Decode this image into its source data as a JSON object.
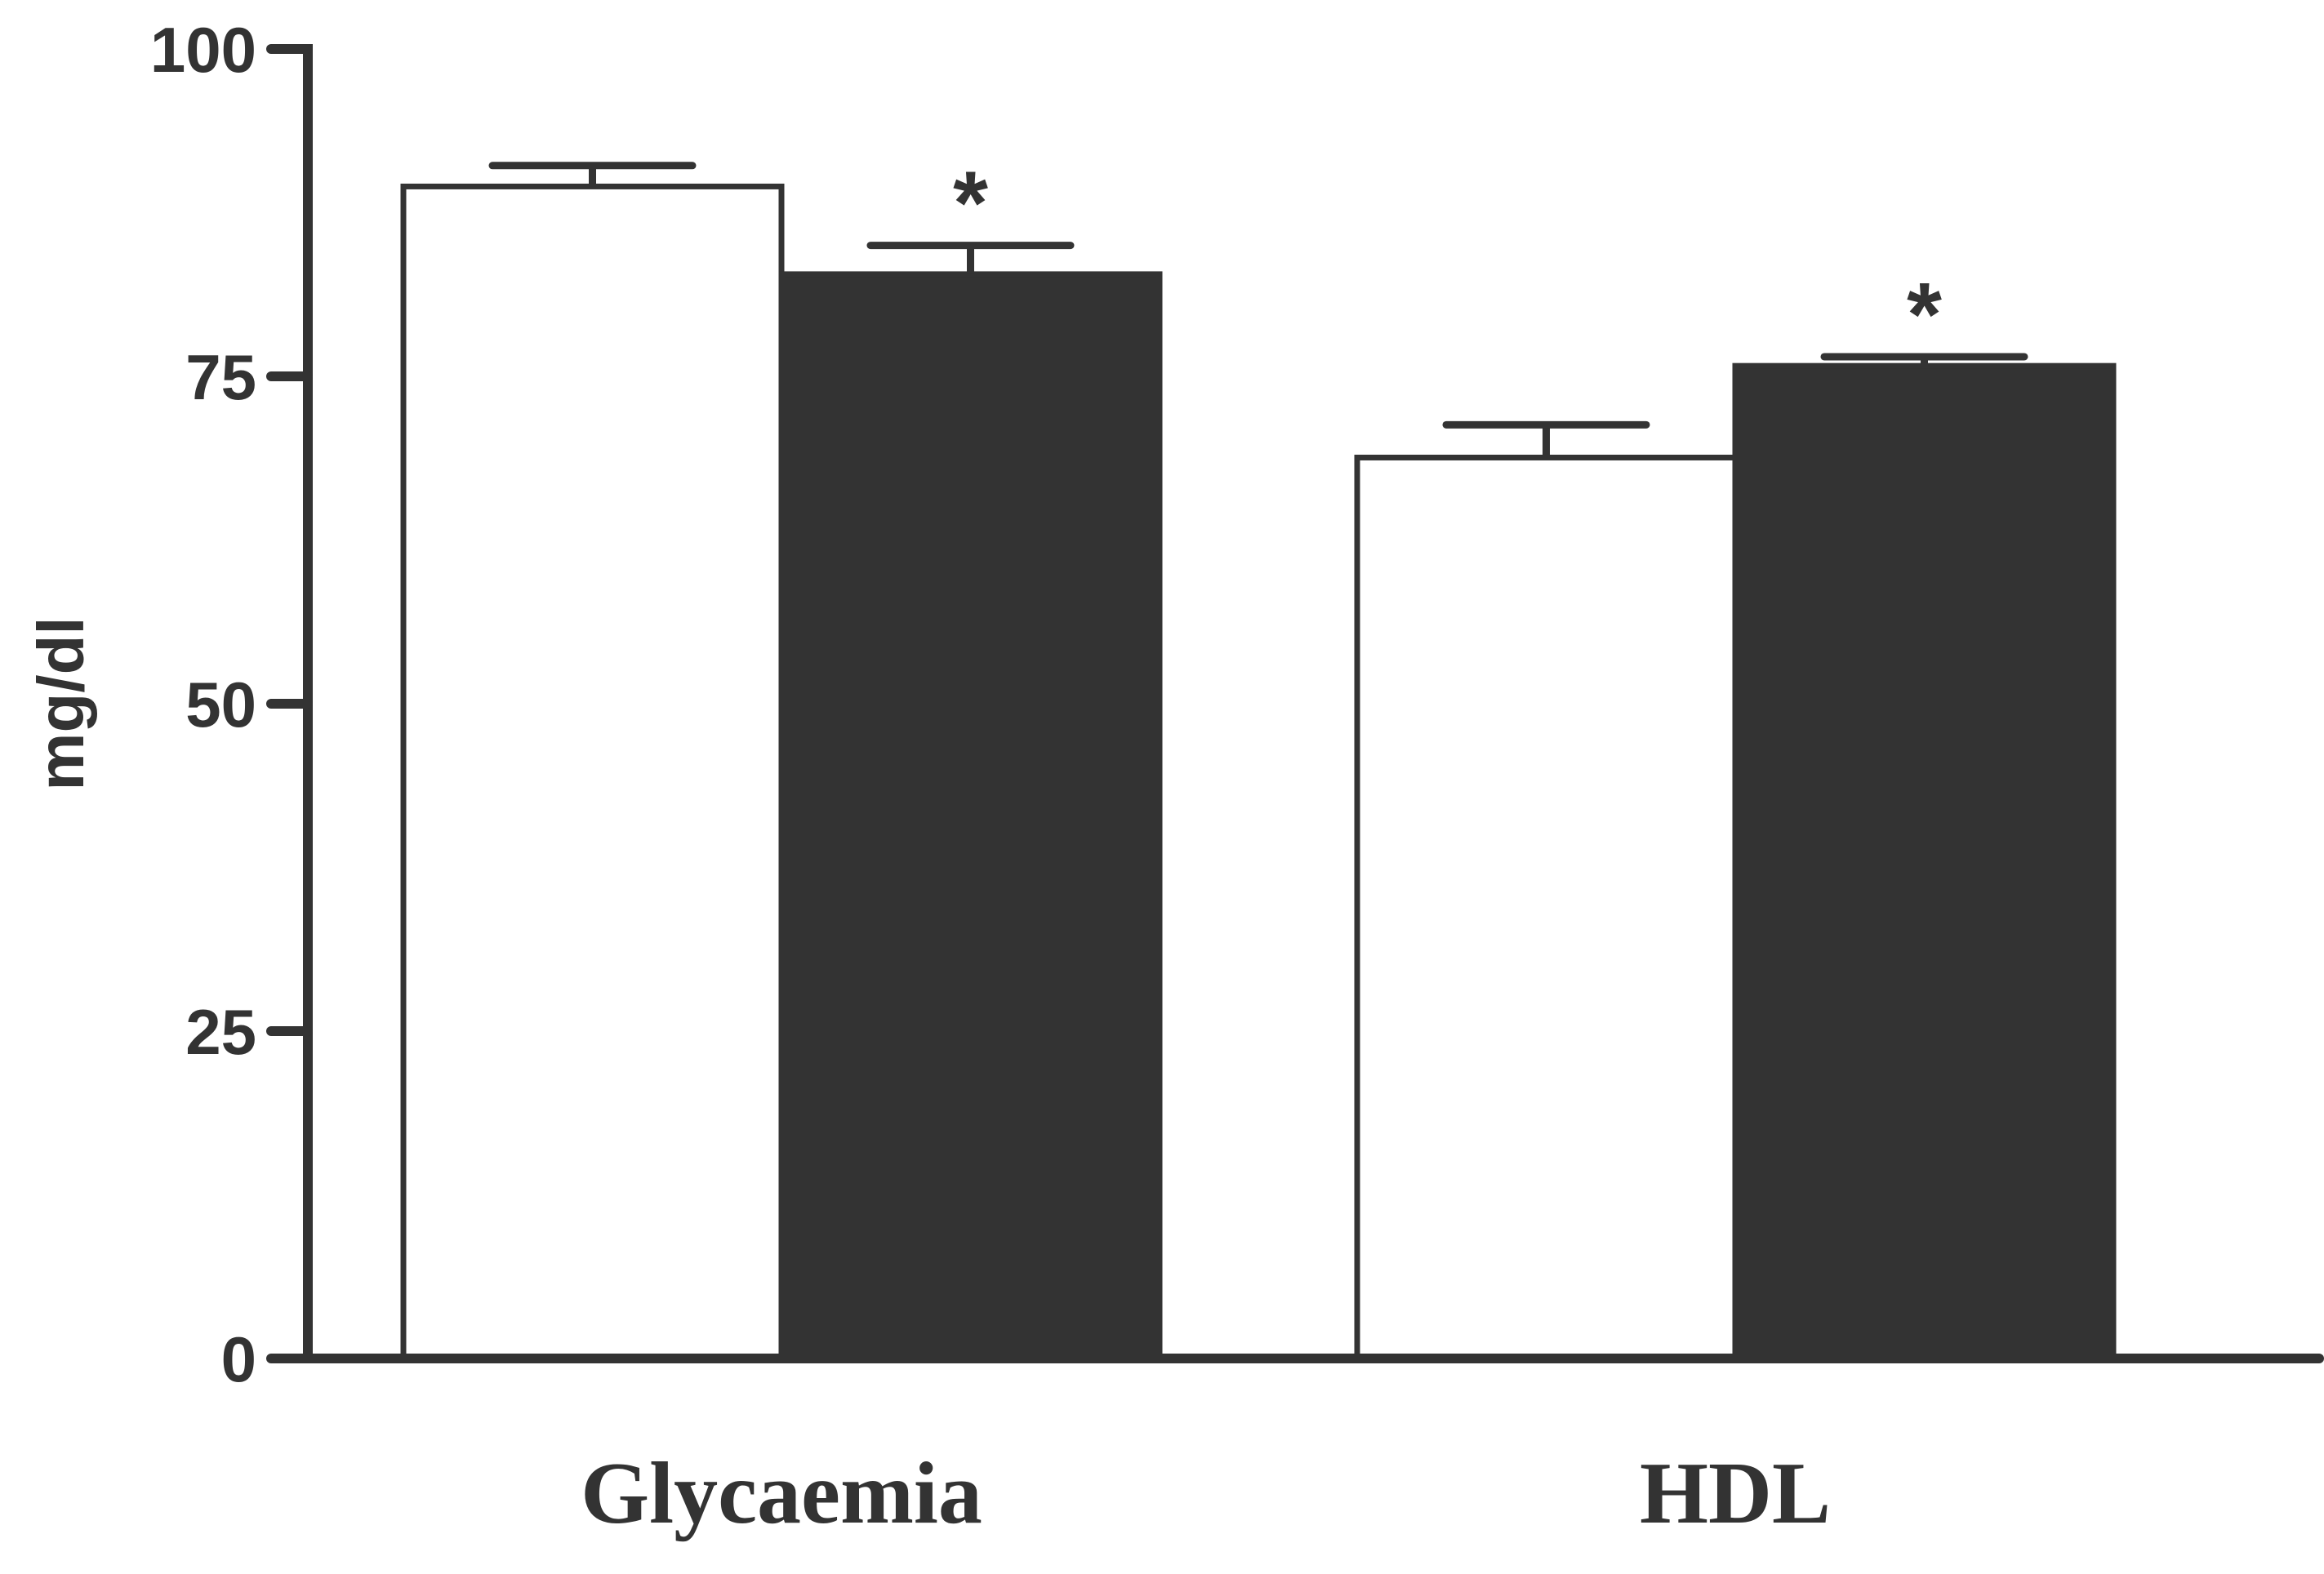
{
  "chart_data": {
    "type": "bar",
    "title": "",
    "xlabel": "",
    "ylabel": "mg/dl",
    "ylim": [
      0,
      100
    ],
    "yticks": [
      "0",
      "25",
      "50",
      "75",
      "100"
    ],
    "categories": [
      "Glycaemia",
      "HDL"
    ],
    "grid": false,
    "legend": "none",
    "series": [
      {
        "fill": "#ffffff",
        "values": [
          89.5,
          68.8
        ],
        "errors": [
          1.6,
          2.5
        ],
        "significance": [
          "",
          ""
        ]
      },
      {
        "fill": "#333333",
        "values": [
          82.8,
          75.8
        ],
        "errors": [
          2.2,
          0.7
        ],
        "significance": [
          "*",
          "*"
        ]
      }
    ]
  },
  "colors": {
    "axis": "#333333",
    "bar_outline": "#333333"
  }
}
